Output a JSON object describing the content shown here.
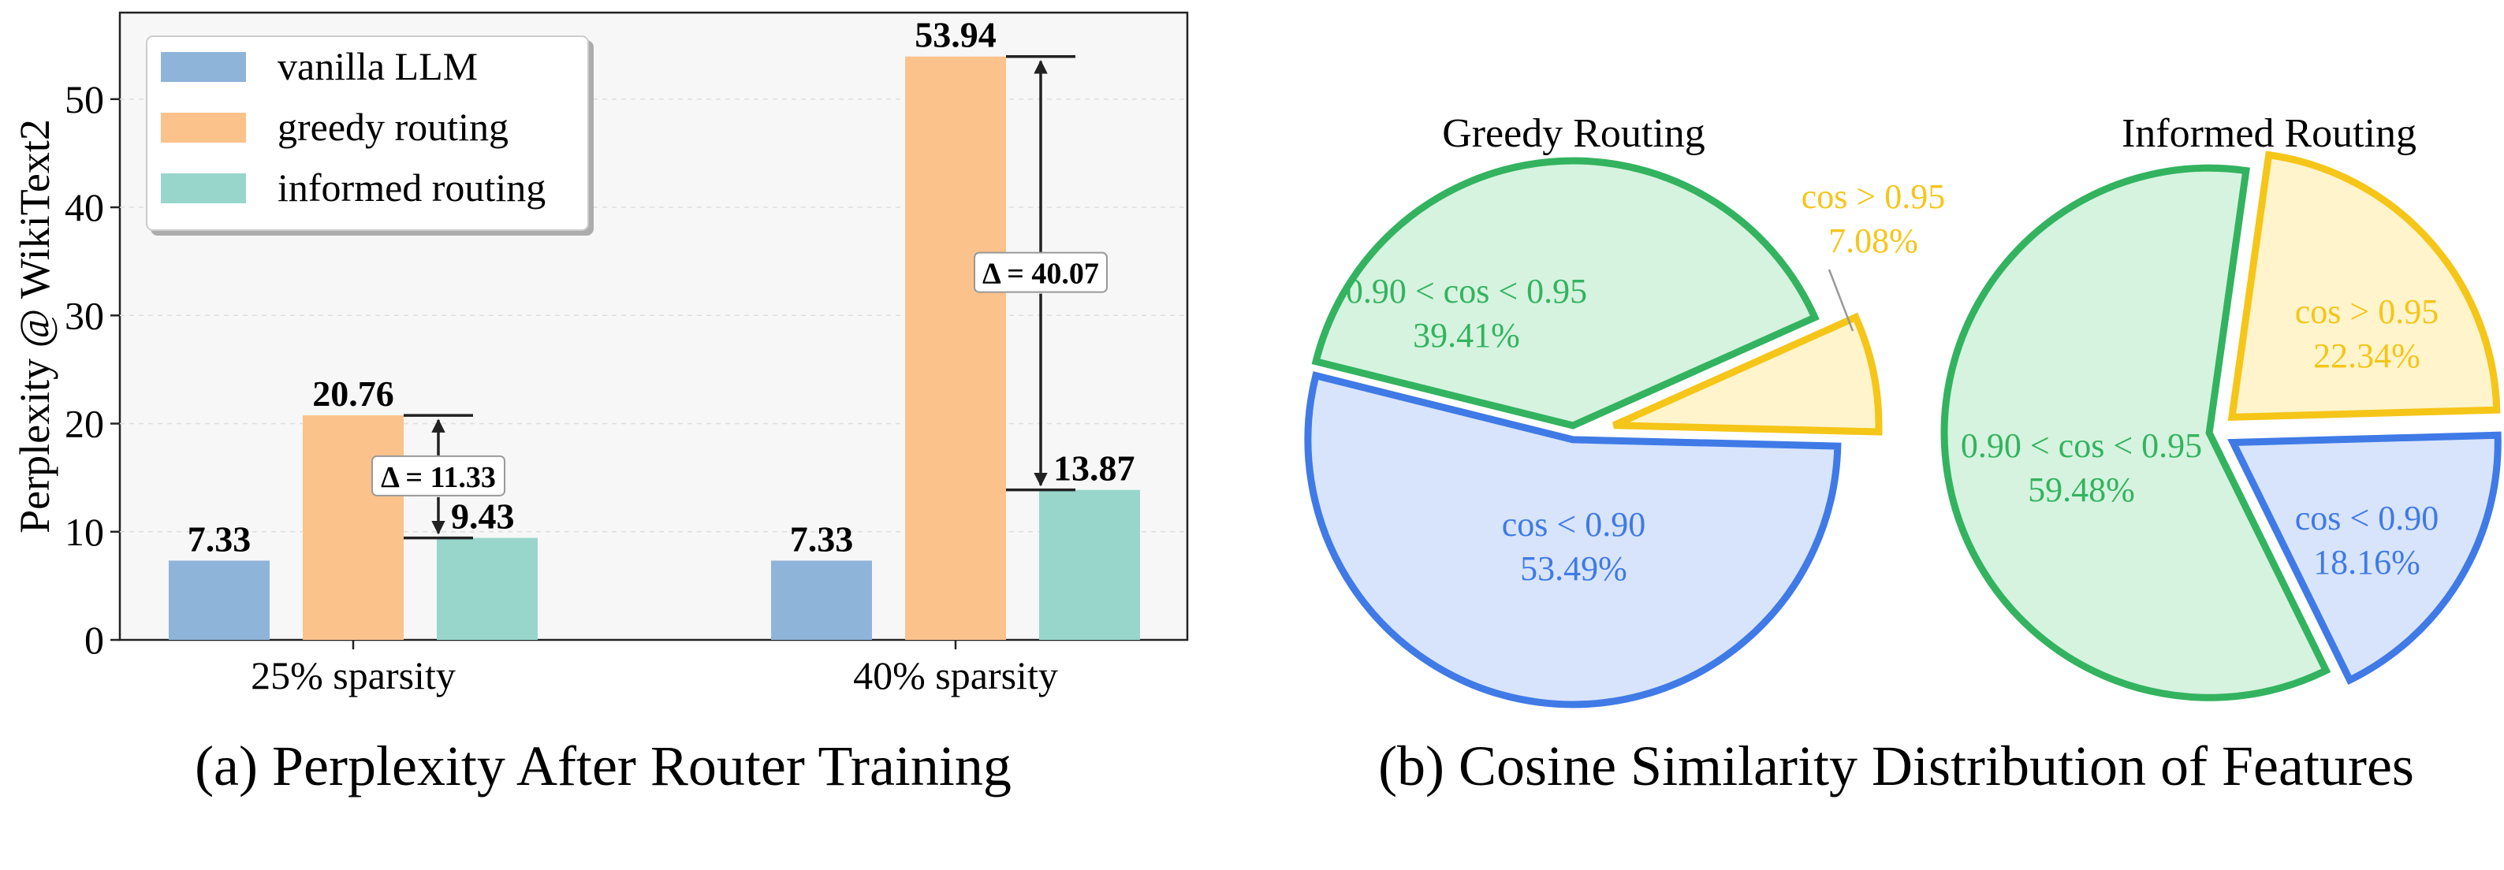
{
  "chart_data": [
    {
      "type": "bar",
      "ylabel": "Perplexity @ WikiText2",
      "ylim": [
        0,
        58
      ],
      "yticks": [
        0,
        10,
        20,
        30,
        40,
        50
      ],
      "grid": true,
      "legend_placement": "top-left",
      "categories": [
        "25% sparsity",
        "40% sparsity"
      ],
      "series": [
        {
          "name": "vanilla LLM",
          "color": "#8fb4d9",
          "values": [
            7.33,
            7.33
          ],
          "labels": [
            "7.33",
            "7.33"
          ]
        },
        {
          "name": "greedy routing",
          "color": "#fcc28b",
          "values": [
            20.76,
            53.94
          ],
          "labels": [
            "20.76",
            "53.94"
          ]
        },
        {
          "name": "informed routing",
          "color": "#98d6cc",
          "values": [
            9.43,
            13.87
          ],
          "labels": [
            "9.43",
            "13.87"
          ]
        }
      ],
      "annotations": [
        {
          "text": "Δ = 11.33",
          "from": 20.76,
          "to": 9.43,
          "category": 0
        },
        {
          "text": "Δ = 40.07",
          "from": 53.94,
          "to": 13.87,
          "category": 1
        }
      ],
      "caption": "(a) Perplexity After Router Training"
    },
    {
      "type": "pie",
      "title": "Greedy Routing",
      "slices": [
        {
          "label": "0.90 < cos < 0.95",
          "pct_text": "39.41%",
          "value": 39.41,
          "color": "#33b35f",
          "fill": "#d6f3df"
        },
        {
          "label": "cos > 0.95",
          "pct_text": "7.08%",
          "value": 7.08,
          "color": "#f5c518",
          "fill": "#fff4cc"
        },
        {
          "label": "cos < 0.90",
          "pct_text": "53.49%",
          "value": 53.49,
          "color": "#3f7ae6",
          "fill": "#d8e4fb"
        }
      ]
    },
    {
      "type": "pie",
      "title": "Informed Routing",
      "slices": [
        {
          "label": "cos > 0.95",
          "pct_text": "22.34%",
          "value": 22.34,
          "color": "#f5c518",
          "fill": "#fff4cc"
        },
        {
          "label": "cos < 0.90",
          "pct_text": "18.16%",
          "value": 18.16,
          "color": "#3f7ae6",
          "fill": "#d8e4fb"
        },
        {
          "label": "0.90 < cos < 0.95",
          "pct_text": "59.48%",
          "value": 59.48,
          "color": "#33b35f",
          "fill": "#d6f3df"
        }
      ]
    }
  ],
  "captions": {
    "left": "(a) Perplexity After Router Training",
    "right": "(b) Cosine Similarity Distribution of Features"
  }
}
